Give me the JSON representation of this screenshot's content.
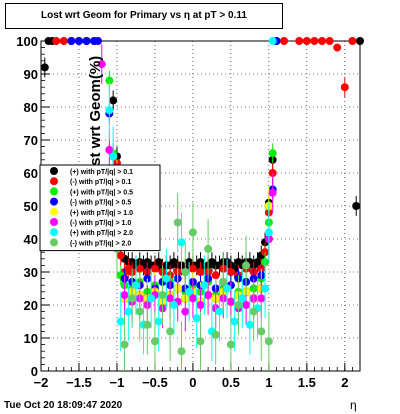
{
  "chart_data": {
    "type": "scatter",
    "title": "Lost wrt Geom for Primary vs  η at pT > 0.11",
    "xlabel": "η",
    "ylabel": "Lost wrt Geom(%)",
    "xlim": [
      -2,
      2.2
    ],
    "ylim": [
      0,
      100
    ],
    "x_ticks": [
      "−2",
      "−1.5",
      "−1",
      "−0.5",
      "0",
      "0.5",
      "1",
      "1.5",
      "2"
    ],
    "y_ticks": [
      "0",
      "10",
      "20",
      "30",
      "40",
      "50",
      "60",
      "70",
      "80",
      "90",
      "100"
    ],
    "grid": true,
    "legend_position": "left-middle",
    "series": [
      {
        "name": "(+) with pT/|q| > 0.1",
        "color": "#000000",
        "x": [
          -1.95,
          -1.9,
          -1.85,
          -1.05,
          -1.0,
          -0.95,
          -0.9,
          -0.85,
          -0.8,
          -0.75,
          -0.7,
          -0.65,
          -0.6,
          -0.55,
          -0.5,
          -0.45,
          -0.4,
          -0.35,
          -0.3,
          -0.25,
          -0.2,
          -0.15,
          -0.1,
          -0.05,
          0.0,
          0.05,
          0.1,
          0.15,
          0.2,
          0.25,
          0.3,
          0.35,
          0.4,
          0.45,
          0.5,
          0.55,
          0.6,
          0.65,
          0.7,
          0.75,
          0.8,
          0.85,
          0.9,
          0.95,
          1.0,
          1.05,
          1.1,
          2.15,
          2.2
        ],
        "y": [
          92,
          100,
          100,
          82,
          65,
          38,
          34,
          33,
          33,
          32,
          33,
          32,
          33,
          32,
          32,
          33,
          31,
          32,
          32,
          33,
          32,
          32,
          31,
          33,
          32,
          32,
          33,
          31,
          32,
          33,
          32,
          32,
          33,
          33,
          32,
          31,
          33,
          32,
          33,
          33,
          32,
          33,
          35,
          39,
          51,
          64,
          100,
          50,
          100
        ]
      },
      {
        "name": "(-) with pT/|q| > 0.1",
        "color": "#ff0000",
        "x": [
          -1.8,
          -1.7,
          -1.6,
          -1.5,
          -1.4,
          -1.3,
          -1.0,
          -0.95,
          -0.9,
          -0.85,
          -0.8,
          -0.7,
          -0.6,
          -0.5,
          -0.4,
          -0.3,
          -0.2,
          -0.1,
          0.0,
          0.1,
          0.2,
          0.3,
          0.4,
          0.5,
          0.6,
          0.7,
          0.8,
          0.9,
          0.95,
          1.0,
          1.05,
          1.1,
          1.2,
          1.4,
          1.5,
          1.6,
          1.7,
          1.8,
          1.9,
          2.0,
          2.1
        ],
        "y": [
          100,
          100,
          100,
          100,
          100,
          100,
          63,
          35,
          30,
          31,
          30,
          31,
          30,
          31,
          30,
          29,
          30,
          30,
          31,
          30,
          30,
          29,
          31,
          30,
          29,
          31,
          30,
          31,
          36,
          48,
          60,
          100,
          100,
          100,
          100,
          100,
          100,
          100,
          98,
          86,
          100
        ]
      },
      {
        "name": "(+) with pT/|q| > 0.5",
        "color": "#00ee00",
        "x": [
          -1.1,
          -1.05,
          -1.0,
          -0.95,
          -0.9,
          -0.8,
          -0.7,
          -0.6,
          -0.5,
          -0.4,
          -0.3,
          -0.2,
          -0.1,
          0.0,
          0.1,
          0.2,
          0.3,
          0.4,
          0.5,
          0.6,
          0.7,
          0.8,
          0.9,
          0.95,
          1.0,
          1.05,
          1.1
        ],
        "y": [
          88,
          66,
          55,
          29,
          26,
          25,
          27,
          24,
          26,
          23,
          27,
          25,
          24,
          26,
          24,
          27,
          23,
          25,
          26,
          24,
          27,
          25,
          28,
          33,
          45,
          66,
          100
        ]
      },
      {
        "name": "(-) with pT/|q| > 0.5",
        "color": "#0000ff",
        "x": [
          -1.6,
          -1.5,
          -1.4,
          -1.3,
          -1.25,
          -1.1,
          -1.0,
          -0.9,
          -0.8,
          -0.7,
          -0.6,
          -0.5,
          -0.4,
          -0.3,
          -0.2,
          -0.1,
          0.0,
          0.1,
          0.2,
          0.3,
          0.4,
          0.5,
          0.6,
          0.7,
          0.8,
          0.9,
          1.0,
          1.05,
          1.1
        ],
        "y": [
          100,
          100,
          100,
          100,
          100,
          78,
          55,
          28,
          27,
          26,
          28,
          25,
          27,
          26,
          28,
          25,
          27,
          26,
          28,
          25,
          27,
          26,
          28,
          27,
          28,
          29,
          40,
          55,
          100
        ]
      },
      {
        "name": "(+) with pT/|q| > 1.0",
        "color": "#ffff00",
        "x": [
          -1.0,
          -0.9,
          -0.8,
          -0.7,
          -0.6,
          -0.5,
          -0.4,
          -0.3,
          -0.2,
          -0.1,
          0.0,
          0.1,
          0.2,
          0.3,
          0.4,
          0.5,
          0.6,
          0.7,
          0.8,
          0.9,
          1.0
        ],
        "y": [
          58,
          22,
          24,
          23,
          22,
          24,
          21,
          23,
          25,
          22,
          24,
          21,
          23,
          22,
          24,
          21,
          23,
          24,
          22,
          25,
          50
        ]
      },
      {
        "name": "(-) with pT/|q| > 1.0",
        "color": "#ff00ff",
        "x": [
          -1.2,
          -1.1,
          -1.0,
          -0.9,
          -0.8,
          -0.7,
          -0.6,
          -0.5,
          -0.4,
          -0.3,
          -0.2,
          -0.1,
          0.0,
          0.1,
          0.2,
          0.3,
          0.4,
          0.5,
          0.6,
          0.7,
          0.8,
          0.9,
          1.0,
          1.05
        ],
        "y": [
          93,
          67,
          57,
          23,
          21,
          22,
          20,
          23,
          19,
          22,
          21,
          18,
          22,
          20,
          23,
          19,
          22,
          21,
          19,
          20,
          22,
          22,
          40,
          54
        ]
      },
      {
        "name": "(+) with pT/|q| > 2.0",
        "color": "#00ffff",
        "x": [
          -1.1,
          -1.05,
          -0.95,
          -0.85,
          -0.75,
          -0.65,
          -0.55,
          -0.45,
          -0.35,
          -0.25,
          -0.15,
          -0.05,
          0.05,
          0.15,
          0.25,
          0.35,
          0.45,
          0.55,
          0.65,
          0.75,
          0.85,
          0.95,
          1.0,
          1.05
        ],
        "y": [
          79,
          65,
          15,
          18,
          26,
          14,
          22,
          15,
          28,
          20,
          39,
          24,
          16,
          26,
          12,
          18,
          25,
          15,
          22,
          14,
          19,
          25,
          42,
          100
        ]
      },
      {
        "name": "(-) with pT/|q| > 2.0",
        "color": "#66cc66",
        "x": [
          -1.0,
          -0.9,
          -0.8,
          -0.7,
          -0.6,
          -0.5,
          -0.4,
          -0.3,
          -0.2,
          -0.15,
          -0.1,
          0.0,
          0.1,
          0.2,
          0.3,
          0.4,
          0.5,
          0.6,
          0.7,
          0.8,
          0.9,
          1.0
        ],
        "y": [
          37,
          8,
          22,
          18,
          14,
          9,
          23,
          12,
          45,
          6,
          30,
          42,
          9,
          37,
          11,
          27,
          8,
          20,
          32,
          18,
          12,
          9
        ]
      }
    ]
  },
  "footer": {
    "date": "Tue Oct 20 18:09:47 2020"
  }
}
